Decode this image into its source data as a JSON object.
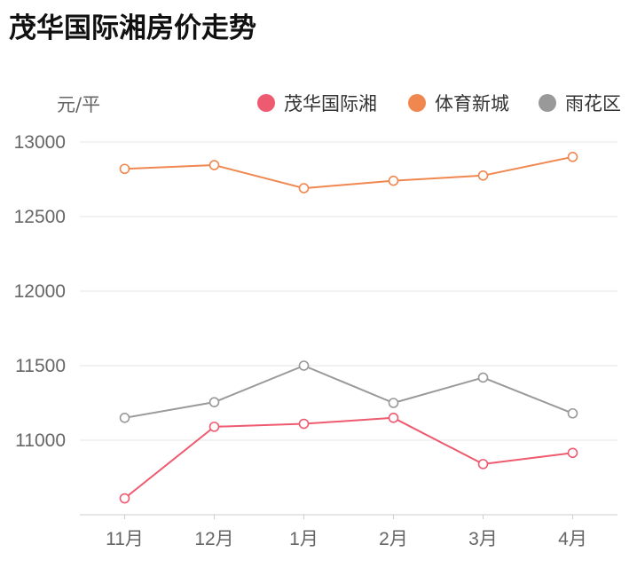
{
  "page": {
    "title": "茂华国际湘房价走势"
  },
  "chart_data": {
    "type": "line",
    "title": "茂华国际湘房价走势",
    "ylabel": "元/平",
    "xlabel": "",
    "categories": [
      "11月",
      "12月",
      "1月",
      "2月",
      "3月",
      "4月"
    ],
    "ylim": [
      10500,
      13000
    ],
    "yticks": [
      11000,
      11500,
      12000,
      12500,
      13000
    ],
    "grid": "horizontal",
    "legend_position": "top-right",
    "series": [
      {
        "name": "茂华国际湘",
        "color": "#ee5a6f",
        "values": [
          10610,
          11090,
          11110,
          11150,
          10840,
          10915
        ]
      },
      {
        "name": "体育新城",
        "color": "#f0874f",
        "values": [
          12820,
          12845,
          12690,
          12740,
          12775,
          12900
        ]
      },
      {
        "name": "雨花区",
        "color": "#999999",
        "values": [
          11150,
          11255,
          11500,
          11250,
          11420,
          11180
        ]
      }
    ]
  }
}
